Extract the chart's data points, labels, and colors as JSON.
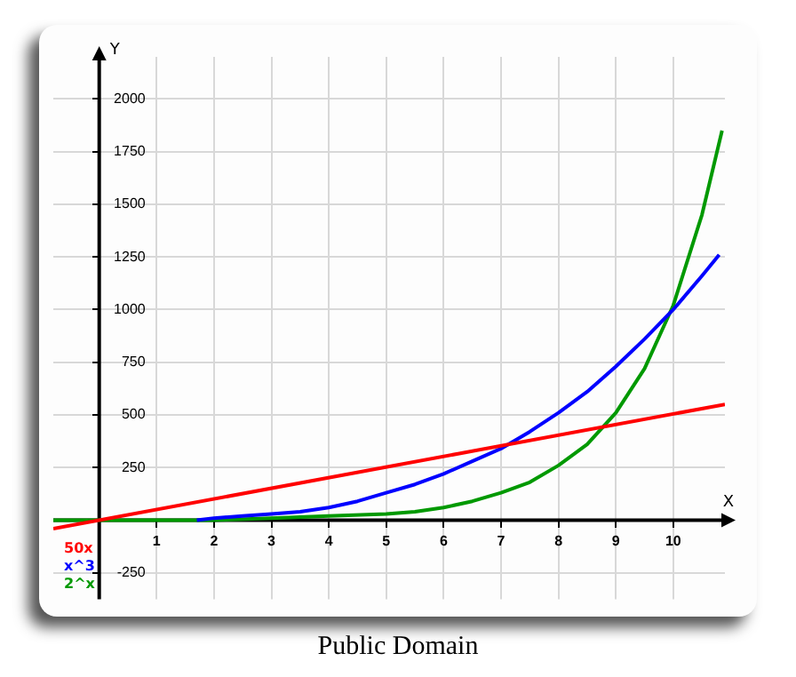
{
  "chart_data": {
    "type": "line",
    "xlabel": "X",
    "ylabel": "Y",
    "annotations": [
      "Public Domain"
    ],
    "xlim": [
      -0.8,
      10.9
    ],
    "ylim": [
      -375,
      2200
    ],
    "xticks": [
      1,
      2,
      3,
      4,
      5,
      6,
      7,
      8,
      9,
      10
    ],
    "yticks": [
      -250,
      250,
      500,
      750,
      1000,
      1250,
      1500,
      1750,
      2000
    ],
    "grid": true,
    "legend": "bottom left",
    "marker": "none",
    "line_style": "solid",
    "series": [
      {
        "name": "50x",
        "color": "#ff0000",
        "x": [
          -0.8,
          10.9
        ],
        "values": [
          -40,
          550
        ]
      },
      {
        "name": "x^3",
        "color": "#0000ff",
        "x": [
          1.7,
          2,
          2.5,
          3,
          3.5,
          4,
          4.5,
          5,
          5.5,
          6,
          6.5,
          7,
          7.5,
          8,
          8.5,
          9,
          9.5,
          10,
          10.5,
          10.8
        ],
        "values": [
          0,
          10,
          20,
          30,
          40,
          60,
          90,
          130,
          170,
          220,
          280,
          340,
          420,
          510,
          610,
          730,
          860,
          1000,
          1160,
          1260
        ]
      },
      {
        "name": "2^x",
        "color": "#009900",
        "x": [
          -0.8,
          0,
          1,
          2,
          3,
          4,
          5,
          5.5,
          6,
          6.5,
          7,
          7.5,
          8,
          8.5,
          9,
          9.5,
          10,
          10.5,
          10.85
        ],
        "values": [
          0,
          0,
          0,
          0,
          10,
          20,
          30,
          40,
          60,
          90,
          130,
          180,
          260,
          360,
          510,
          720,
          1020,
          1450,
          1850
        ]
      }
    ]
  }
}
